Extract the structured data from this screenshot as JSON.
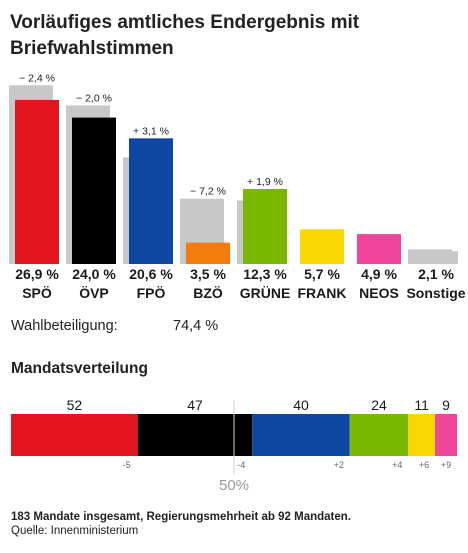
{
  "title": "Vorläufiges amtliches Endergebnis mit Briefwahlstimmen",
  "turnout": {
    "label": "Wahlbeteiligung:",
    "value": "74,4 %"
  },
  "seats_title": "Mandatsverteilung",
  "majority_label": "50%",
  "footnote": "183 Mandate insgesamt, Regierungsmehrheit ab 92 Mandaten.",
  "source": "Quelle: Innenministerium",
  "chart_data": [
    {
      "type": "bar",
      "title": "",
      "xlabel": "",
      "ylabel": "",
      "ylim": [
        0,
        30
      ],
      "grid": false,
      "categories": [
        "SPÖ",
        "ÖVP",
        "FPÖ",
        "BZÖ",
        "GRÜNE",
        "FRANK",
        "NEOS",
        "Sonstige"
      ],
      "series": [
        {
          "name": "",
          "values": [
            29.3,
            26.0,
            17.5,
            10.7,
            10.4,
            0,
            0,
            2.4
          ]
        },
        {
          "name": "",
          "values": [
            26.9,
            24.0,
            20.6,
            3.5,
            12.3,
            5.7,
            4.9,
            2.1
          ]
        }
      ],
      "value_labels": [
        "26,9 %",
        "24,0 %",
        "20,6 %",
        "3,5 %",
        "12,3 %",
        "5,7 %",
        "4,9 %",
        "2,1 %"
      ],
      "change_labels": [
        "− 2,4 %",
        "− 2,0 %",
        "+ 3,1 %",
        "− 7,2 %",
        "+ 1,9 %",
        "",
        "",
        ""
      ],
      "colors": [
        "#e3161f",
        "#000000",
        "#0d47a1",
        "#f47c0d",
        "#7ab800",
        "#f8d800",
        "#f0449a",
        "#c8c8ca"
      ],
      "previous_color": "#c8c8ca"
    },
    {
      "type": "bar",
      "stacked": true,
      "orientation": "horizontal",
      "title": "",
      "total": 183,
      "categories": [
        "SPÖ",
        "ÖVP",
        "FPÖ",
        "GRÜNE",
        "FRANK",
        "NEOS"
      ],
      "values": [
        52,
        47,
        40,
        24,
        11,
        9
      ],
      "value_labels": [
        "52",
        "47",
        "40",
        "24",
        "11",
        "9"
      ],
      "change_labels": [
        "-5",
        "-4",
        "+2",
        "+4",
        "+6",
        "+9"
      ],
      "colors": [
        "#e3161f",
        "#000000",
        "#0d47a1",
        "#7ab800",
        "#f8d800",
        "#f0449a"
      ],
      "majority_fraction": 0.5
    }
  ]
}
